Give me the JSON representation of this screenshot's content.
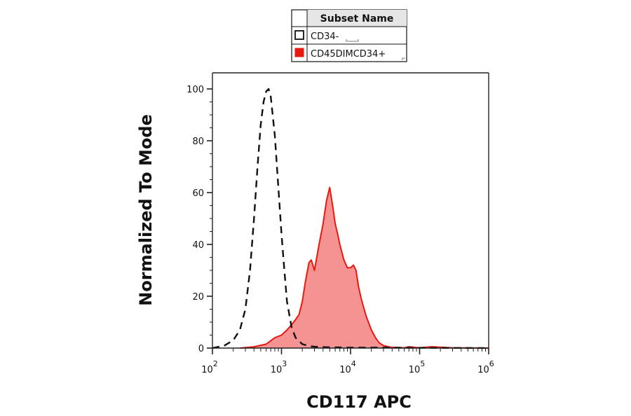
{
  "chart_data": {
    "type": "area",
    "xlabel": "CD117 APC",
    "ylabel": "Normalized To Mode",
    "xscale": "log",
    "xlim": [
      100,
      1000000
    ],
    "ylim": [
      0,
      100
    ],
    "x_tick_labels": [
      {
        "base": "10",
        "exp": "2"
      },
      {
        "base": "10",
        "exp": "3"
      },
      {
        "base": "10",
        "exp": "4"
      },
      {
        "base": "10",
        "exp": "5"
      },
      {
        "base": "10",
        "exp": "6"
      }
    ],
    "y_ticks": [
      "0",
      "20",
      "40",
      "60",
      "80",
      "100"
    ],
    "legend": {
      "header": "Subset Name",
      "placement": "top-center",
      "entries": [
        {
          "label": "CD34-",
          "style": "dashed-outline",
          "color": "#111111"
        },
        {
          "label": "CD45DIMCD34+",
          "style": "filled",
          "color": "#e8190f"
        }
      ]
    },
    "series": [
      {
        "name": "CD34-",
        "style": "dashed",
        "color": "#111111",
        "x": [
          100,
          150,
          200,
          250,
          300,
          350,
          400,
          450,
          500,
          550,
          600,
          650,
          700,
          800,
          900,
          1000,
          1100,
          1200,
          1400,
          1600,
          2000,
          2500,
          3000,
          5000,
          10000,
          30000,
          100000,
          1000000
        ],
        "y": [
          0,
          1,
          3,
          7,
          15,
          30,
          50,
          70,
          86,
          95,
          99,
          100,
          97,
          82,
          62,
          44,
          30,
          18,
          8,
          4,
          1.5,
          0.8,
          0.5,
          0.3,
          0.2,
          0.2,
          0.1,
          0
        ]
      },
      {
        "name": "CD45DIMCD34+",
        "style": "filled",
        "color": "#e8190f",
        "fill": "#f59393",
        "x": [
          250,
          400,
          600,
          800,
          1000,
          1200,
          1400,
          1600,
          1800,
          2000,
          2200,
          2500,
          2700,
          3000,
          3500,
          4000,
          4500,
          5000,
          5500,
          6000,
          6500,
          7000,
          8000,
          9000,
          10000,
          11000,
          12000,
          13000,
          14000,
          15000,
          17000,
          20000,
          23000,
          26000,
          30000,
          35000,
          40000,
          50000,
          60000,
          70000,
          100000,
          150000,
          300000,
          1000000
        ],
        "y": [
          0,
          0.5,
          1.5,
          4,
          5,
          7,
          9,
          11,
          13,
          18,
          25,
          33,
          34,
          30,
          40,
          48,
          57,
          62,
          55,
          48,
          44,
          40,
          34,
          31,
          31,
          32,
          30,
          24,
          20,
          17,
          12,
          7,
          4,
          2,
          1,
          0.5,
          0.3,
          0.2,
          0.1,
          0.5,
          0.1,
          0.5,
          0.1,
          0
        ]
      }
    ]
  }
}
